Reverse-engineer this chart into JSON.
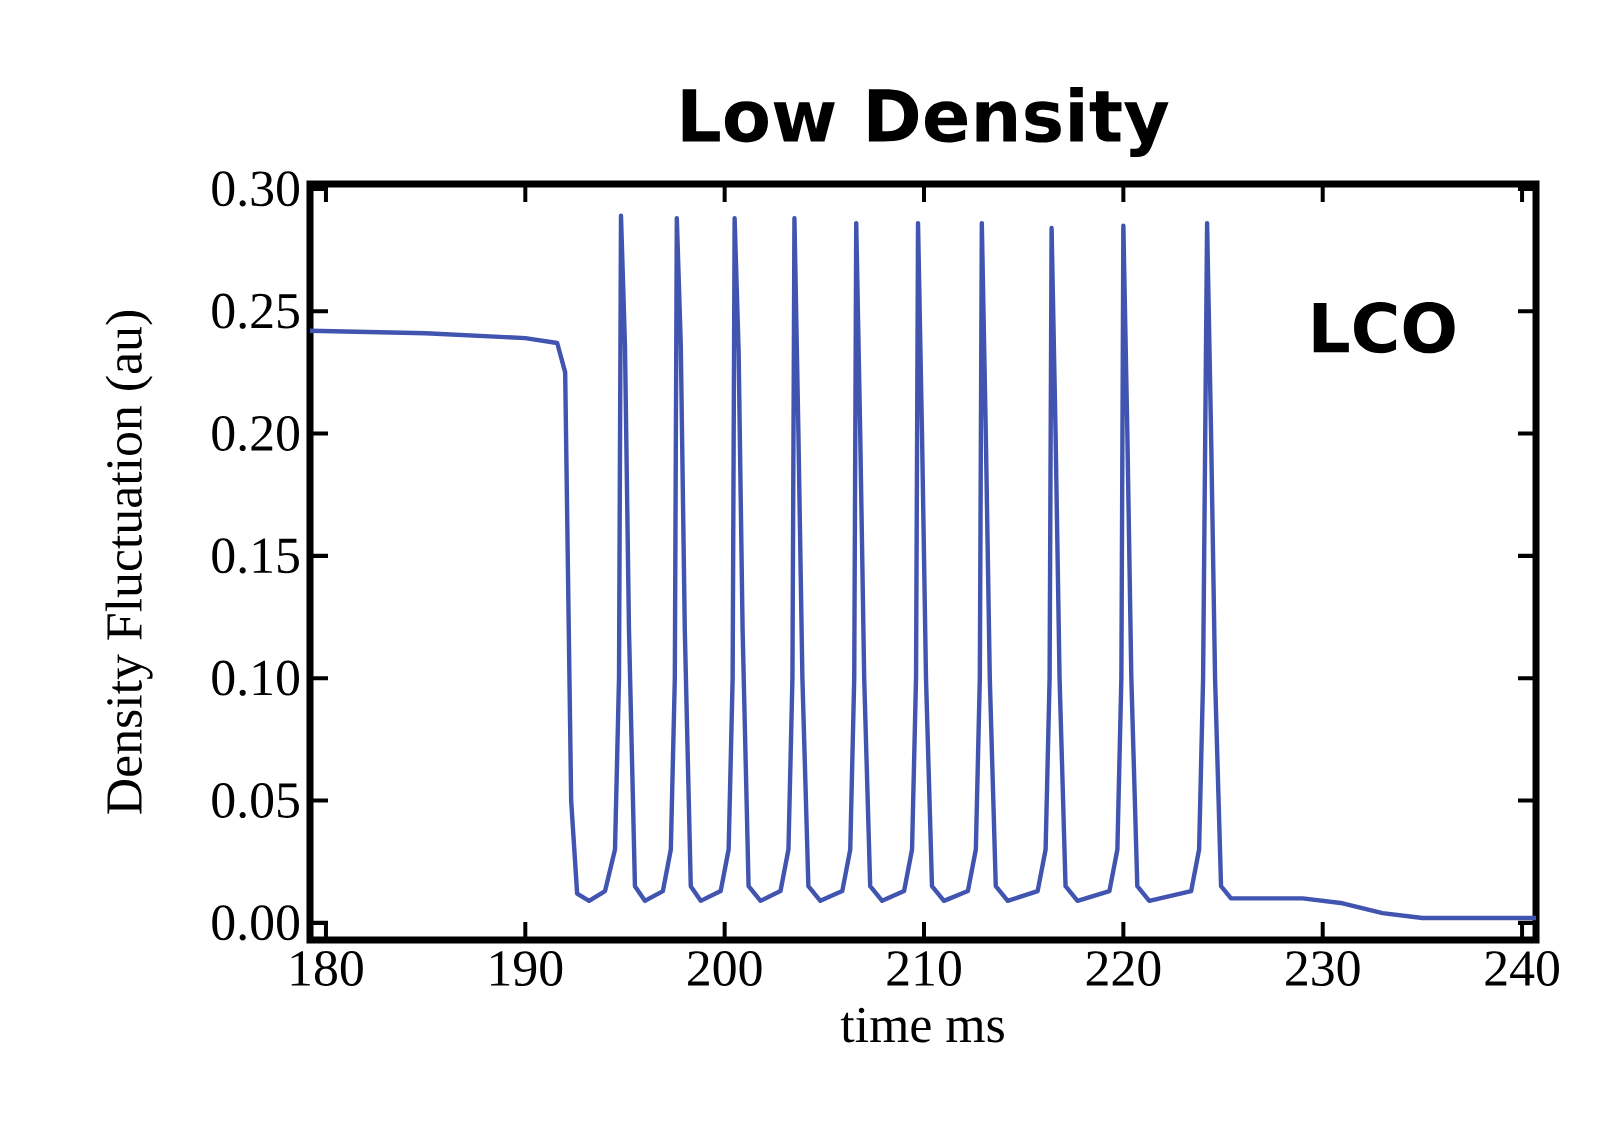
{
  "chart_data": {
    "type": "line",
    "title": "Low Density",
    "xlabel": "time ms",
    "ylabel": "Density Fluctuation (au)",
    "annotations": [
      "LCO"
    ],
    "xlim": [
      179.2,
      240.7
    ],
    "ylim": [
      -0.007,
      0.302
    ],
    "xticks": [
      180,
      190,
      200,
      210,
      220,
      230,
      240
    ],
    "yticks": [
      {
        "value": 0,
        "label": "0.00"
      },
      {
        "value": 0.05,
        "label": "0.05"
      },
      {
        "value": 0.1,
        "label": "0.10"
      },
      {
        "value": 0.15,
        "label": "0.15"
      },
      {
        "value": 0.2,
        "label": "0.20"
      },
      {
        "value": 0.25,
        "label": "0.25"
      },
      {
        "value": 0.3,
        "label": "0.30"
      }
    ],
    "grid": false,
    "marker": "none",
    "line_style": "solid",
    "series": [
      {
        "color": "#4054b0",
        "x": [
          179.2,
          185,
          190,
          191.6,
          192.0,
          192.3,
          192.6,
          193.2,
          194.0,
          194.5,
          194.7,
          194.8,
          195.0,
          195.2,
          195.5,
          196.0,
          196.9,
          197.3,
          197.5,
          197.6,
          197.8,
          198.0,
          198.3,
          198.8,
          199.8,
          200.2,
          200.4,
          200.5,
          200.7,
          200.9,
          201.2,
          201.8,
          202.8,
          203.2,
          203.4,
          203.5,
          203.7,
          203.9,
          204.2,
          204.8,
          205.9,
          206.3,
          206.5,
          206.6,
          206.8,
          207.0,
          207.3,
          207.9,
          209.0,
          209.4,
          209.6,
          209.7,
          209.9,
          210.1,
          210.4,
          211.0,
          212.2,
          212.6,
          212.8,
          212.9,
          213.1,
          213.3,
          213.6,
          214.2,
          215.7,
          216.1,
          216.3,
          216.4,
          216.6,
          216.8,
          217.1,
          217.7,
          219.3,
          219.7,
          219.9,
          220.0,
          220.2,
          220.4,
          220.7,
          221.3,
          223.4,
          223.8,
          224.0,
          224.2,
          224.4,
          224.6,
          224.9,
          225.4,
          229,
          231,
          233,
          235,
          240.7
        ],
        "values": [
          0.242,
          0.241,
          0.239,
          0.237,
          0.225,
          0.05,
          0.012,
          0.009,
          0.013,
          0.03,
          0.1,
          0.289,
          0.236,
          0.12,
          0.015,
          0.009,
          0.013,
          0.03,
          0.1,
          0.288,
          0.236,
          0.12,
          0.015,
          0.009,
          0.013,
          0.03,
          0.1,
          0.288,
          0.234,
          0.12,
          0.015,
          0.009,
          0.013,
          0.03,
          0.1,
          0.288,
          0.2,
          0.1,
          0.015,
          0.009,
          0.013,
          0.03,
          0.1,
          0.286,
          0.2,
          0.1,
          0.015,
          0.009,
          0.013,
          0.03,
          0.1,
          0.286,
          0.2,
          0.1,
          0.015,
          0.009,
          0.013,
          0.03,
          0.1,
          0.286,
          0.2,
          0.1,
          0.015,
          0.009,
          0.013,
          0.03,
          0.1,
          0.284,
          0.2,
          0.1,
          0.015,
          0.009,
          0.013,
          0.03,
          0.1,
          0.285,
          0.2,
          0.1,
          0.015,
          0.009,
          0.013,
          0.03,
          0.1,
          0.286,
          0.2,
          0.1,
          0.015,
          0.01,
          0.01,
          0.008,
          0.004,
          0.002,
          0.002
        ]
      }
    ]
  }
}
